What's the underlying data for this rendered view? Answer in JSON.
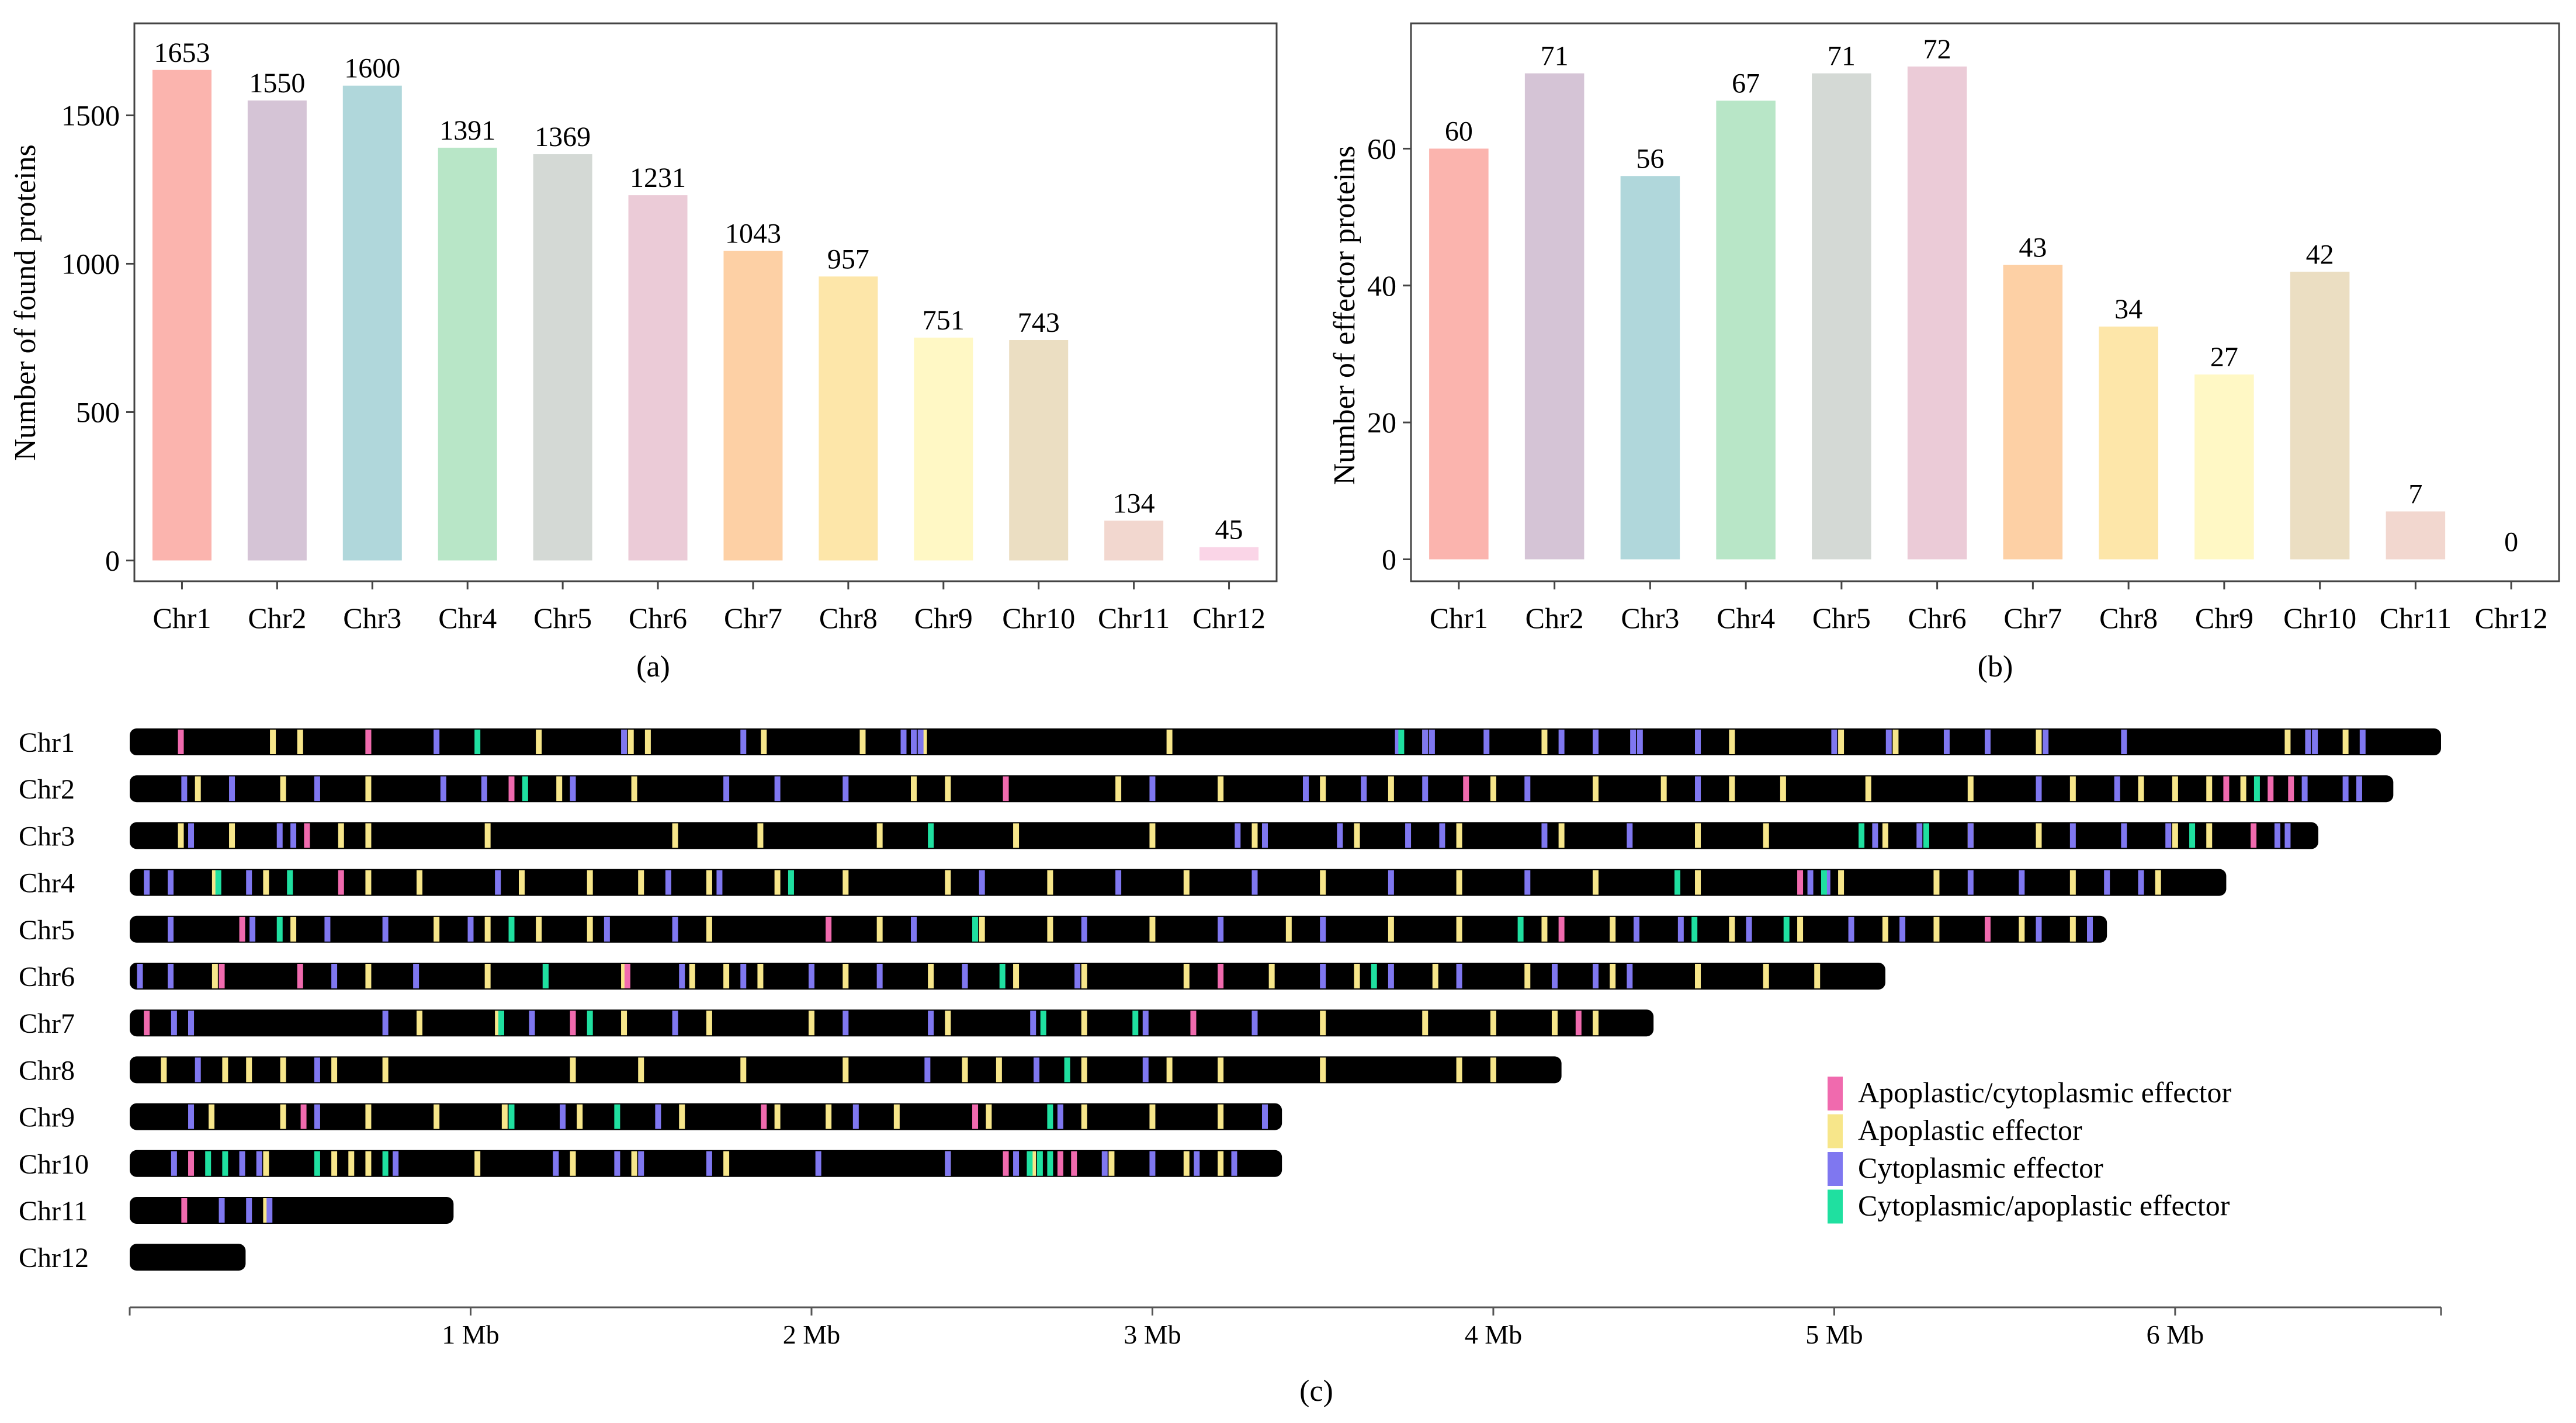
{
  "colors": {
    "chromosome_bar": "#000000",
    "axis": "#555555",
    "panel_frame": "#444444",
    "bar_palette": [
      "#FBB4AE",
      "#D5C4D6",
      "#B0D7DB",
      "#B8E6C7",
      "#D4D9D5",
      "#EBCBD7",
      "#FDD0A5",
      "#FDE6A9",
      "#FFF8C5",
      "#EBDEC2",
      "#F2D7CF",
      "#FAD5E7"
    ],
    "effector_types": {
      "apoplastic_cytoplasmic": "#F06AAE",
      "apoplastic": "#F7E68A",
      "cytoplasmic": "#7F77F0",
      "cytoplasmic_apoplastic": "#1FE0A0"
    }
  },
  "chart_data": [
    {
      "id": "a",
      "type": "bar",
      "panel_label": "(a)",
      "title": "",
      "xlabel": "",
      "ylabel": "Number of found proteins",
      "categories": [
        "Chr1",
        "Chr2",
        "Chr3",
        "Chr4",
        "Chr5",
        "Chr6",
        "Chr7",
        "Chr8",
        "Chr9",
        "Chr10",
        "Chr11",
        "Chr12"
      ],
      "values": [
        1653,
        1550,
        1600,
        1391,
        1369,
        1231,
        1043,
        957,
        751,
        743,
        134,
        45
      ],
      "value_labels": [
        "1653",
        "1550",
        "1600",
        "1391",
        "1369",
        "1231",
        "1043",
        "957",
        "751",
        "743",
        "134",
        "45"
      ],
      "yticks": [
        0,
        500,
        1000,
        1500
      ],
      "ytick_labels": [
        "0",
        "500",
        "1000",
        "1500"
      ],
      "ylim": [
        -70,
        1810
      ],
      "grid": false
    },
    {
      "id": "b",
      "type": "bar",
      "panel_label": "(b)",
      "title": "",
      "xlabel": "",
      "ylabel": "Number of effector proteins",
      "categories": [
        "Chr1",
        "Chr2",
        "Chr3",
        "Chr4",
        "Chr5",
        "Chr6",
        "Chr7",
        "Chr8",
        "Chr9",
        "Chr10",
        "Chr11",
        "Chr12"
      ],
      "values": [
        60,
        71,
        56,
        67,
        71,
        72,
        43,
        34,
        27,
        42,
        7,
        0
      ],
      "value_labels": [
        "60",
        "71",
        "56",
        "67",
        "71",
        "72",
        "43",
        "34",
        "27",
        "42",
        "7",
        "0"
      ],
      "yticks": [
        0,
        20,
        40,
        60
      ],
      "ytick_labels": [
        "0",
        "20",
        "40",
        "60"
      ],
      "ylim": [
        -3.2,
        78.3
      ],
      "grid": false
    },
    {
      "id": "c",
      "type": "chromosome_map",
      "panel_label": "(c)",
      "title": "",
      "xlabel": "",
      "ylabel": "",
      "x_unit": "Mb",
      "xlim": [
        0,
        6.78
      ],
      "xticks": [
        1,
        2,
        3,
        4,
        5,
        6
      ],
      "xtick_labels": [
        "1 Mb",
        "2 Mb",
        "3 Mb",
        "4 Mb",
        "5 Mb",
        "6 Mb"
      ],
      "legend": [
        {
          "key": "apoplastic_cytoplasmic",
          "label": "Apoplastic/cytoplasmic effector"
        },
        {
          "key": "apoplastic",
          "label": "Apoplastic effector"
        },
        {
          "key": "cytoplasmic",
          "label": "Cytoplasmic effector"
        },
        {
          "key": "cytoplasmic_apoplastic",
          "label": "Cytoplasmic/apoplastic effector"
        }
      ],
      "legend_position": "right",
      "chromosomes": [
        {
          "name": "Chr1",
          "length_mb": 6.78,
          "apoplastic_cytoplasmic": [
            0.15,
            0.7
          ],
          "apoplastic": [
            0.42,
            0.5,
            0.7,
            1.2,
            1.47,
            1.52,
            1.86,
            2.15,
            2.33,
            3.05,
            3.8,
            4.15,
            4.7,
            5.02,
            5.18,
            5.6,
            6.33,
            6.5
          ],
          "cytoplasmic": [
            0.9,
            1.45,
            1.8,
            2.27,
            2.3,
            2.32,
            3.72,
            3.8,
            3.82,
            3.98,
            4.2,
            4.3,
            4.41,
            4.43,
            4.6,
            5.0,
            5.16,
            5.33,
            5.45,
            5.62,
            5.85,
            6.39,
            6.41,
            6.55
          ],
          "cytoplasmic_apoplastic": [
            1.02,
            3.73
          ]
        },
        {
          "name": "Chr2",
          "length_mb": 6.64,
          "apoplastic_cytoplasmic": [
            1.12,
            2.57,
            3.92,
            6.15,
            6.28,
            6.34
          ],
          "apoplastic": [
            0.2,
            0.45,
            0.7,
            1.26,
            1.48,
            2.3,
            2.4,
            2.9,
            3.2,
            3.5,
            3.7,
            4.0,
            4.3,
            4.5,
            4.7,
            4.85,
            5.1,
            5.4,
            5.7,
            5.9,
            6.0,
            6.1,
            6.2
          ],
          "cytoplasmic": [
            0.16,
            0.3,
            0.55,
            0.92,
            1.04,
            1.3,
            1.75,
            1.9,
            2.1,
            3.0,
            3.45,
            3.62,
            3.8,
            4.1,
            4.6,
            5.6,
            5.83,
            6.38,
            6.5,
            6.54
          ],
          "cytoplasmic_apoplastic": [
            1.16,
            6.24
          ]
        },
        {
          "name": "Chr3",
          "length_mb": 6.42,
          "apoplastic_cytoplasmic": [
            0.52,
            6.23
          ],
          "apoplastic": [
            0.15,
            0.3,
            0.62,
            0.7,
            1.05,
            1.6,
            1.85,
            2.2,
            2.6,
            3.0,
            3.3,
            3.6,
            3.9,
            4.2,
            4.6,
            4.8,
            5.15,
            5.4,
            5.6,
            6.0,
            6.1
          ],
          "cytoplasmic": [
            0.18,
            0.44,
            0.48,
            3.25,
            3.33,
            3.55,
            3.75,
            3.85,
            4.15,
            4.4,
            5.12,
            5.25,
            5.4,
            5.7,
            5.85,
            5.98,
            6.3,
            6.33
          ],
          "cytoplasmic_apoplastic": [
            2.35,
            5.08,
            5.27,
            6.05
          ]
        },
        {
          "name": "Chr4",
          "length_mb": 6.15,
          "apoplastic_cytoplasmic": [
            0.62,
            4.9
          ],
          "apoplastic": [
            0.25,
            0.4,
            0.7,
            0.85,
            1.15,
            1.35,
            1.5,
            1.7,
            1.9,
            2.1,
            2.4,
            2.7,
            3.1,
            3.5,
            3.9,
            4.3,
            4.6,
            5.02,
            5.3,
            5.7,
            5.95
          ],
          "cytoplasmic": [
            0.05,
            0.12,
            0.35,
            1.08,
            1.58,
            1.73,
            2.5,
            2.9,
            3.3,
            3.7,
            4.1,
            4.93,
            4.98,
            5.4,
            5.55,
            5.8,
            5.9
          ],
          "cytoplasmic_apoplastic": [
            0.26,
            0.47,
            1.94,
            4.54,
            4.97
          ]
        },
        {
          "name": "Chr5",
          "length_mb": 5.8,
          "apoplastic_cytoplasmic": [
            0.33,
            2.05,
            4.2,
            5.45
          ],
          "apoplastic": [
            0.48,
            0.9,
            1.05,
            1.2,
            1.35,
            1.7,
            2.2,
            2.5,
            2.7,
            3.0,
            3.4,
            3.7,
            3.9,
            4.15,
            4.35,
            4.7,
            4.9,
            5.15,
            5.3,
            5.55,
            5.7
          ],
          "cytoplasmic": [
            0.12,
            0.36,
            0.58,
            0.75,
            1.0,
            1.4,
            1.6,
            2.3,
            2.8,
            3.2,
            3.5,
            4.42,
            4.55,
            4.75,
            5.05,
            5.2,
            5.6,
            5.75
          ],
          "cytoplasmic_apoplastic": [
            0.44,
            1.12,
            2.48,
            4.08,
            4.59,
            4.86
          ]
        },
        {
          "name": "Chr6",
          "length_mb": 5.15,
          "apoplastic_cytoplasmic": [
            0.27,
            0.5,
            1.46,
            3.2
          ],
          "apoplastic": [
            0.25,
            0.7,
            1.05,
            1.45,
            1.65,
            1.75,
            1.85,
            2.1,
            2.35,
            2.6,
            2.8,
            3.1,
            3.35,
            3.6,
            3.83,
            4.1,
            4.35,
            4.6,
            4.8,
            4.95
          ],
          "cytoplasmic": [
            0.03,
            0.12,
            0.6,
            0.84,
            1.22,
            1.62,
            1.8,
            2.0,
            2.2,
            2.45,
            2.78,
            3.5,
            3.7,
            3.9,
            4.18,
            4.3,
            4.4
          ],
          "cytoplasmic_apoplastic": [
            1.22,
            2.56,
            3.65
          ]
        },
        {
          "name": "Chr7",
          "length_mb": 4.47,
          "apoplastic_cytoplasmic": [
            0.05,
            1.3,
            3.12,
            4.25
          ],
          "apoplastic": [
            0.18,
            0.85,
            1.08,
            1.45,
            1.7,
            2.0,
            2.4,
            2.8,
            3.5,
            3.8,
            4.0,
            4.18,
            4.3
          ],
          "cytoplasmic": [
            0.13,
            0.18,
            0.75,
            1.18,
            1.6,
            2.1,
            2.35,
            2.65,
            2.98,
            3.3
          ],
          "cytoplasmic_apoplastic": [
            1.09,
            1.35,
            2.68,
            2.95
          ]
        },
        {
          "name": "Chr8",
          "length_mb": 4.2,
          "apoplastic_cytoplasmic": [],
          "apoplastic": [
            0.1,
            0.28,
            0.35,
            0.45,
            0.6,
            0.75,
            1.3,
            1.5,
            1.8,
            2.1,
            2.45,
            2.55,
            2.8,
            3.05,
            3.2,
            3.5,
            3.9,
            4.0
          ],
          "cytoplasmic": [
            0.2,
            0.55,
            2.34,
            2.66,
            2.98
          ],
          "cytoplasmic_apoplastic": [
            2.75
          ]
        },
        {
          "name": "Chr9",
          "length_mb": 3.38,
          "apoplastic_cytoplasmic": [
            0.51,
            1.86,
            2.48
          ],
          "apoplastic": [
            0.24,
            0.45,
            0.7,
            0.9,
            1.1,
            1.32,
            1.62,
            1.9,
            2.05,
            2.25,
            2.52,
            2.8,
            3.0,
            3.2
          ],
          "cytoplasmic": [
            0.18,
            0.55,
            1.27,
            1.55,
            2.13,
            2.73,
            3.33
          ],
          "cytoplasmic_apoplastic": [
            1.12,
            1.43,
            2.7
          ]
        },
        {
          "name": "Chr10",
          "length_mb": 3.38,
          "apoplastic_cytoplasmic": [
            0.18,
            2.57,
            2.73,
            2.77
          ],
          "apoplastic": [
            0.4,
            0.6,
            0.65,
            0.7,
            1.02,
            1.3,
            1.48,
            1.75,
            2.4,
            2.65,
            2.88,
            3.1,
            3.2
          ],
          "cytoplasmic": [
            0.13,
            0.33,
            0.38,
            0.78,
            1.25,
            1.43,
            1.5,
            1.7,
            2.02,
            2.4,
            2.6,
            2.86,
            3.0,
            3.13,
            3.24
          ],
          "cytoplasmic_apoplastic": [
            0.23,
            0.28,
            0.55,
            0.75,
            2.64,
            2.67,
            2.7
          ]
        },
        {
          "name": "Chr11",
          "length_mb": 0.95,
          "apoplastic_cytoplasmic": [
            0.16
          ],
          "apoplastic": [
            0.4
          ],
          "cytoplasmic": [
            0.27,
            0.35,
            0.41
          ],
          "cytoplasmic_apoplastic": []
        },
        {
          "name": "Chr12",
          "length_mb": 0.34,
          "apoplastic_cytoplasmic": [],
          "apoplastic": [],
          "cytoplasmic": [],
          "cytoplasmic_apoplastic": []
        }
      ]
    }
  ]
}
